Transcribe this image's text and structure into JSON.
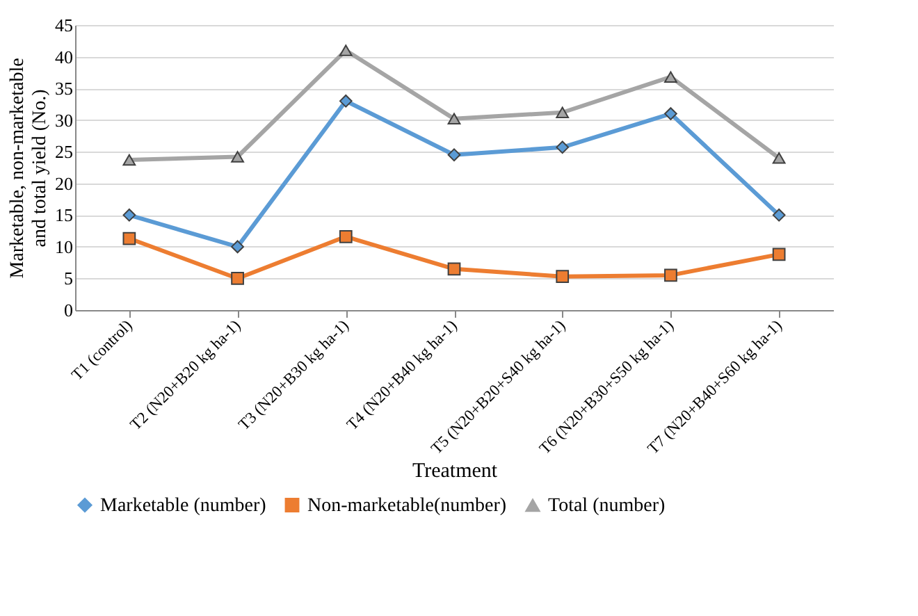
{
  "chart_data": {
    "type": "line",
    "xlabel": "Treatment",
    "ylabel": "Marketable,  non-marketable and total yield  (No.)",
    "categories": [
      "T1 (control)",
      "T2 (N20+B20 kg ha-1)",
      "T3 (N20+B30 kg ha-1)",
      "T4 (N20+B40 kg ha-1)",
      "T5 (N20+B20+S40 kg ha-1)",
      "T6 (N20+B30+S50 kg ha-1)",
      "T7 (N20+B40+S60 kg ha-1)"
    ],
    "series": [
      {
        "name": "Marketable (number)",
        "color": "#5b9bd5",
        "marker": "diamond",
        "values": [
          15,
          10,
          33,
          24.5,
          25.7,
          31,
          15
        ]
      },
      {
        "name": "Non-marketable(number)",
        "color": "#ed7d31",
        "marker": "square",
        "values": [
          11.3,
          5,
          11.6,
          6.5,
          5.3,
          5.5,
          8.8
        ]
      },
      {
        "name": "Total (number)",
        "color": "#a5a5a5",
        "marker": "triangle",
        "values": [
          23.7,
          24.2,
          41,
          30.2,
          31.2,
          36.8,
          24
        ]
      }
    ],
    "ylim": [
      0,
      45
    ],
    "yticks": [
      0,
      5,
      10,
      15,
      20,
      25,
      30,
      35,
      40,
      45
    ],
    "grid": "y",
    "legend": "bottom"
  }
}
